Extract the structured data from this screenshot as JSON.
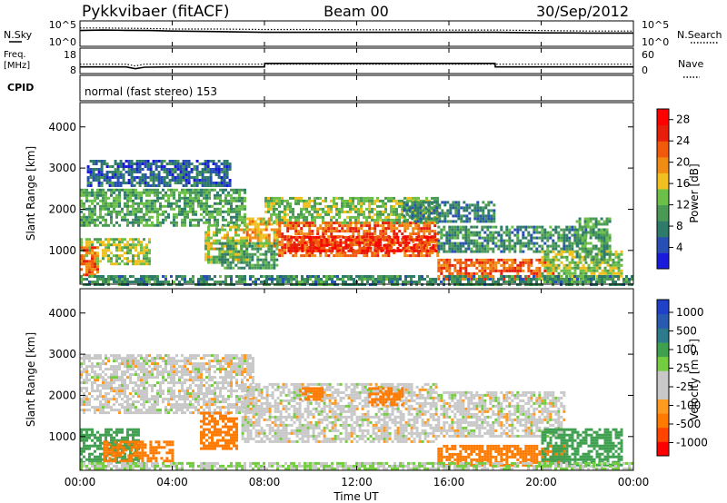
{
  "header": {
    "station": "Pykkvibaer (fitACF)",
    "beam": "Beam 00",
    "date": "30/Sep/2012"
  },
  "panels": {
    "nsky_label": "N.Sky",
    "nsky_ticks": [
      "10^5",
      "10^0"
    ],
    "nsearch_label": "N.Search",
    "nsearch_ticks": [
      "10^5",
      "10^0"
    ],
    "freq_label_top": "Freq.",
    "freq_label_unit": "[MHz]",
    "freq_ticks": [
      "18",
      "8"
    ],
    "nave_label": "Nave",
    "nave_ticks": [
      "60",
      "0"
    ],
    "cpid_label": "CPID",
    "cpid_text": "normal (fast stereo) 153"
  },
  "x_axis": {
    "label": "Time UT",
    "ticks": [
      "00:00",
      "04:00",
      "08:00",
      "12:00",
      "16:00",
      "20:00",
      "00:00"
    ]
  },
  "colors": {
    "power": [
      "#1a1adc",
      "#2850b4",
      "#2f7b6a",
      "#4a9a55",
      "#6cc04a",
      "#f0c020",
      "#f08c14",
      "#f05a0a",
      "#e61e0a",
      "#ff0000"
    ],
    "velocity": [
      "#ff0000",
      "#ff4400",
      "#ff7a00",
      "#ff9a20",
      "#c8c8c8",
      "#c8c8c8",
      "#74cc40",
      "#3fa050",
      "#2d7a8a",
      "#2a5ab0",
      "#2040c8"
    ]
  },
  "chart_data": [
    {
      "type": "line",
      "name": "nsky-nsearch",
      "x": [
        0,
        1,
        2,
        3,
        4,
        6,
        8,
        10,
        12,
        14,
        16,
        18,
        20,
        22,
        24
      ],
      "series": [
        {
          "name": "N.Sky",
          "values": [
            0.62,
            0.64,
            0.63,
            0.62,
            0.6,
            0.58,
            0.55,
            0.55,
            0.55,
            0.55,
            0.55,
            0.55,
            0.53,
            0.52,
            0.52
          ]
        },
        {
          "name": "N.Search",
          "values": [
            0.72,
            0.72,
            0.71,
            0.7,
            0.68,
            0.68,
            0.66,
            0.66,
            0.65,
            0.65,
            0.64,
            0.64,
            0.62,
            0.6,
            0.6
          ]
        }
      ]
    },
    {
      "type": "line",
      "name": "freq-nave",
      "x": [
        0,
        2,
        2.4,
        2.8,
        4,
        8.0,
        8.01,
        12,
        16,
        18.0,
        18.01,
        20,
        24
      ],
      "series": [
        {
          "name": "Freq.",
          "values": [
            10.6,
            10.6,
            9.9,
            10.5,
            10.6,
            10.6,
            12.0,
            12.0,
            12.0,
            12.0,
            10.6,
            10.6,
            10.6
          ]
        },
        {
          "name": "Nave",
          "values": [
            22,
            22,
            18,
            22,
            22,
            22,
            22,
            22,
            22,
            22,
            22,
            22,
            22
          ]
        }
      ],
      "ylim_freq": [
        8,
        18
      ],
      "ylim_nave": [
        0,
        60
      ]
    },
    {
      "type": "heatmap",
      "name": "power",
      "title": "Power [dB]",
      "ylabel": "Slant Range [km]",
      "xlabel": "Time UT",
      "xlim": [
        0,
        24
      ],
      "ylim": [
        180,
        4590
      ],
      "yticks": [
        1000,
        2000,
        3000,
        4000
      ],
      "colorbar_ticks": [
        4,
        8,
        12,
        16,
        20,
        24,
        28
      ],
      "colorbar_range": [
        0,
        30
      ],
      "regions": [
        {
          "t0": 0.0,
          "t1": 7.2,
          "r0": 1600,
          "r1": 2500,
          "v": 11
        },
        {
          "t0": 0.0,
          "t1": 3.0,
          "r0": 700,
          "r1": 1300,
          "v": 14
        },
        {
          "t0": 0.0,
          "t1": 0.8,
          "r0": 400,
          "r1": 1100,
          "v": 22
        },
        {
          "t0": 0.3,
          "t1": 6.5,
          "r0": 2600,
          "r1": 3200,
          "v": 6
        },
        {
          "t0": 5.4,
          "t1": 7.2,
          "r0": 700,
          "r1": 1600,
          "v": 15
        },
        {
          "t0": 6.0,
          "t1": 8.5,
          "r0": 600,
          "r1": 1200,
          "v": 10
        },
        {
          "t0": 7.2,
          "t1": 8.6,
          "r0": 1100,
          "r1": 1800,
          "v": 18
        },
        {
          "t0": 8.0,
          "t1": 15.5,
          "r0": 1700,
          "r1": 2300,
          "v": 13
        },
        {
          "t0": 8.6,
          "t1": 15.5,
          "r0": 900,
          "r1": 1700,
          "v": 22
        },
        {
          "t0": 9.0,
          "t1": 15.5,
          "r0": 1000,
          "r1": 1350,
          "v": 26
        },
        {
          "t0": 14.0,
          "t1": 18.0,
          "r0": 1700,
          "r1": 2200,
          "v": 8
        },
        {
          "t0": 15.5,
          "t1": 20.5,
          "r0": 300,
          "r1": 800,
          "v": 22
        },
        {
          "t0": 15.5,
          "t1": 22.0,
          "r0": 1000,
          "r1": 1600,
          "v": 9
        },
        {
          "t0": 20.0,
          "t1": 23.5,
          "r0": 300,
          "r1": 1000,
          "v": 14
        },
        {
          "t0": 21.5,
          "t1": 23.0,
          "r0": 800,
          "r1": 1800,
          "v": 11
        },
        {
          "t0": 0.0,
          "t1": 24.0,
          "r0": 200,
          "r1": 400,
          "v": 9
        }
      ]
    },
    {
      "type": "heatmap",
      "name": "velocity",
      "title": "Velocity [m s^-1]",
      "ylabel": "Slant Range [km]",
      "xlabel": "Time UT",
      "xlim": [
        0,
        24
      ],
      "ylim": [
        180,
        4590
      ],
      "yticks": [
        1000,
        2000,
        3000,
        4000
      ],
      "colorbar_ticks": [
        "1000",
        "500",
        "100",
        "25",
        "-25",
        "-100",
        "-500",
        "-1000"
      ],
      "regions": [
        {
          "t0": 0.0,
          "t1": 7.5,
          "r0": 1600,
          "r1": 3000,
          "v": 0
        },
        {
          "t0": 0.0,
          "t1": 2.5,
          "r0": 400,
          "r1": 1200,
          "v": 150
        },
        {
          "t0": 1.0,
          "t1": 4.0,
          "r0": 400,
          "r1": 900,
          "v": -200
        },
        {
          "t0": 5.2,
          "t1": 6.8,
          "r0": 700,
          "r1": 1600,
          "v": -400
        },
        {
          "t0": 7.0,
          "t1": 15.5,
          "r0": 900,
          "r1": 2300,
          "v": 0
        },
        {
          "t0": 9.5,
          "t1": 10.5,
          "r0": 1900,
          "r1": 2200,
          "v": -300
        },
        {
          "t0": 12.5,
          "t1": 14.0,
          "r0": 1800,
          "r1": 2200,
          "v": -300
        },
        {
          "t0": 15.5,
          "t1": 21.0,
          "r0": 300,
          "r1": 800,
          "v": -300
        },
        {
          "t0": 15.5,
          "t1": 21.0,
          "r0": 1000,
          "r1": 2100,
          "v": 0
        },
        {
          "t0": 20.0,
          "t1": 23.5,
          "r0": 300,
          "r1": 1200,
          "v": 200
        },
        {
          "t0": 0.0,
          "t1": 24.0,
          "r0": 200,
          "r1": 380,
          "v": 30
        }
      ]
    }
  ]
}
